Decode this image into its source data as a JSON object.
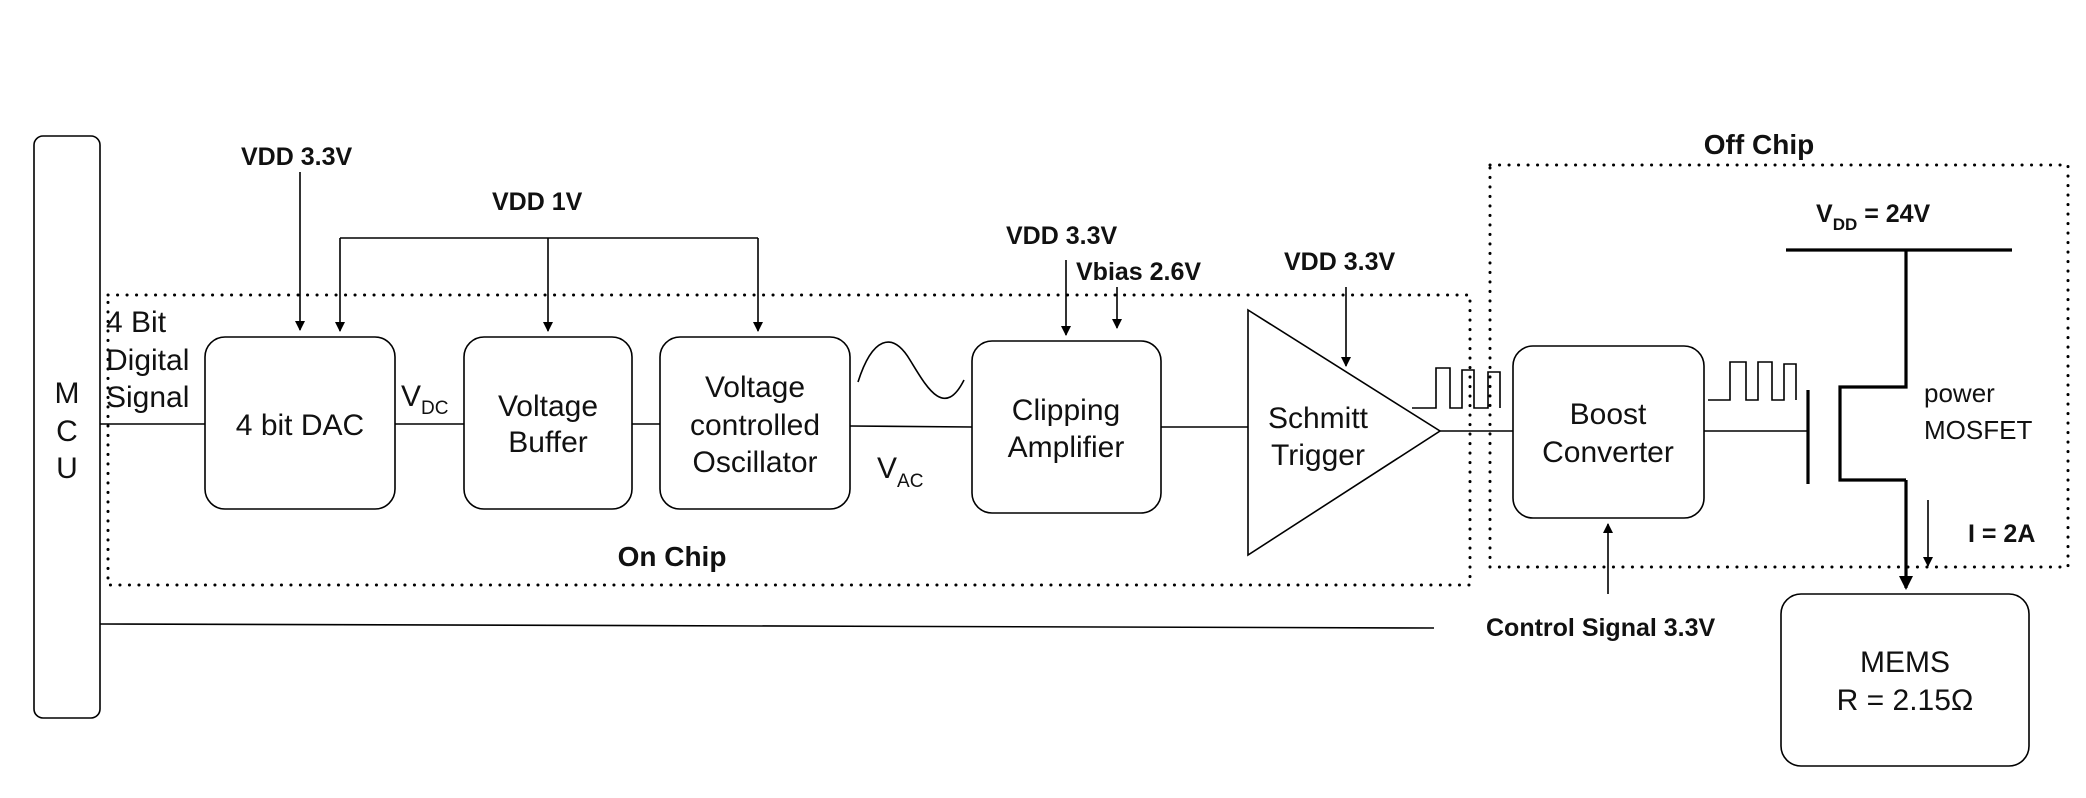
{
  "mcu": {
    "letters": [
      "M",
      "C",
      "U"
    ]
  },
  "input_signal": {
    "line1": "4 Bit",
    "line2": "Digital",
    "line3": "Signal"
  },
  "supplies": {
    "dac_vdd": "VDD 3.3V",
    "vdd_1v": "VDD 1V",
    "amp_vdd": "VDD 3.3V",
    "vbias": "Vbias 2.6V",
    "schmitt_vdd": "VDD 3.3V"
  },
  "blocks": {
    "dac": {
      "line1": "4 bit DAC"
    },
    "buffer": {
      "line1": "Voltage",
      "line2": "Buffer"
    },
    "vco": {
      "line1": "Voltage",
      "line2": "controlled",
      "line3": "Oscillator"
    },
    "clipping": {
      "line1": "Clipping",
      "line2": "Amplifier"
    },
    "schmitt": {
      "line1": "Schmitt",
      "line2": "Trigger"
    },
    "boost": {
      "line1": "Boost",
      "line2": "Converter"
    },
    "mems": {
      "line1": "MEMS",
      "line2": "R = 2.15Ω"
    }
  },
  "signals": {
    "vdc_main": "V",
    "vdc_sub": "DC",
    "vac_main": "V",
    "vac_sub": "AC"
  },
  "regions": {
    "on_chip": "On Chip",
    "off_chip": "Off Chip"
  },
  "power": {
    "vdd_main": "V",
    "vdd_sub": "DD",
    "vdd_value": " = 24V",
    "mosfet_line1": "power",
    "mosfet_line2": "MOSFET",
    "current": "I = 2A"
  },
  "control_signal": "Control Signal 3.3V"
}
